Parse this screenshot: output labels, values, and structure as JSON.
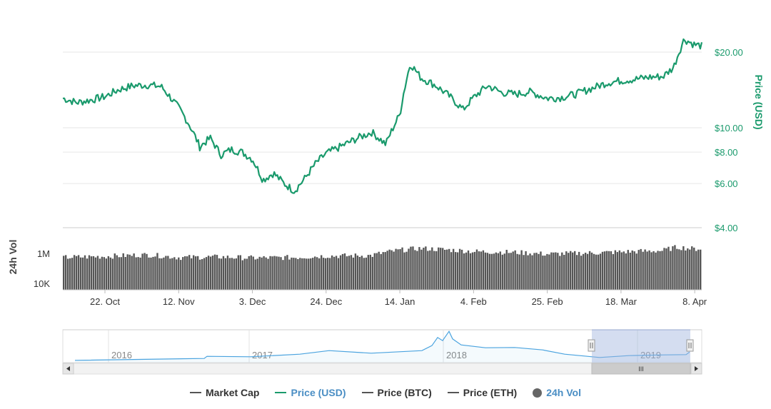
{
  "chart_data": {
    "type": "line",
    "title": "",
    "colors": {
      "price": "#1a9a6c",
      "volume": "#555555",
      "navigator": "#4aa3df"
    },
    "price_axis": {
      "label": "Price (USD)",
      "ticks": [
        "$20.00",
        "$10.00",
        "$8.00",
        "$6.00",
        "$4.00"
      ],
      "tick_values": [
        20,
        10,
        8,
        6,
        4
      ],
      "scale": "log"
    },
    "volume_axis": {
      "label": "24h Vol",
      "ticks": [
        "1M",
        "10K"
      ],
      "tick_values": [
        1000000,
        10000
      ],
      "scale": "log"
    },
    "x_ticks": [
      "22. Oct",
      "12. Nov",
      "3. Dec",
      "24. Dec",
      "14. Jan",
      "4. Feb",
      "25. Feb",
      "18. Mar",
      "8. Apr"
    ],
    "x_tick_dates": [
      "2018-10-22",
      "2018-11-12",
      "2018-12-03",
      "2018-12-24",
      "2019-01-14",
      "2019-02-04",
      "2019-02-25",
      "2019-03-18",
      "2019-04-08"
    ],
    "x_range": [
      "2018-10-10",
      "2019-04-10"
    ],
    "series": [
      {
        "name": "Price (USD)",
        "x": [
          "2018-10-10",
          "2018-10-14",
          "2018-10-18",
          "2018-10-22",
          "2018-10-26",
          "2018-10-30",
          "2018-11-03",
          "2018-11-07",
          "2018-11-12",
          "2018-11-15",
          "2018-11-18",
          "2018-11-21",
          "2018-11-24",
          "2018-11-27",
          "2018-11-30",
          "2018-12-03",
          "2018-12-06",
          "2018-12-09",
          "2018-12-12",
          "2018-12-15",
          "2018-12-18",
          "2018-12-21",
          "2018-12-24",
          "2018-12-28",
          "2019-01-02",
          "2019-01-06",
          "2019-01-10",
          "2019-01-14",
          "2019-01-17",
          "2019-01-20",
          "2019-01-24",
          "2019-01-28",
          "2019-02-01",
          "2019-02-04",
          "2019-02-08",
          "2019-02-12",
          "2019-02-16",
          "2019-02-20",
          "2019-02-25",
          "2019-03-01",
          "2019-03-05",
          "2019-03-10",
          "2019-03-14",
          "2019-03-18",
          "2019-03-22",
          "2019-03-26",
          "2019-03-30",
          "2019-04-02",
          "2019-04-05",
          "2019-04-08",
          "2019-04-10"
        ],
        "values": [
          13.1,
          12.6,
          12.9,
          13.3,
          14.2,
          14.7,
          14.8,
          14.6,
          12.0,
          10.3,
          8.4,
          9.1,
          7.8,
          8.2,
          8.0,
          7.5,
          6.2,
          6.6,
          6.0,
          5.6,
          6.3,
          7.2,
          7.9,
          8.4,
          9.1,
          9.6,
          8.6,
          11.3,
          18.0,
          15.8,
          14.8,
          13.4,
          11.8,
          13.2,
          14.7,
          13.8,
          13.6,
          13.9,
          13.1,
          13.2,
          13.6,
          14.4,
          15.1,
          15.4,
          15.6,
          15.9,
          16.0,
          17.4,
          22.5,
          21.4,
          21.2
        ]
      },
      {
        "name": "24h Vol",
        "x": [
          "2018-10-10",
          "2018-10-22",
          "2018-11-03",
          "2018-11-12",
          "2018-11-24",
          "2018-12-03",
          "2018-12-15",
          "2018-12-24",
          "2019-01-06",
          "2019-01-14",
          "2019-01-20",
          "2019-02-04",
          "2019-02-16",
          "2019-02-25",
          "2019-03-10",
          "2019-03-18",
          "2019-03-30",
          "2019-04-03",
          "2019-04-08",
          "2019-04-10"
        ],
        "values": [
          600000,
          700000,
          900000,
          600000,
          650000,
          550000,
          600000,
          750000,
          800000,
          1800000,
          2400000,
          1500000,
          1300000,
          1000000,
          1200000,
          1400000,
          1700000,
          2900000,
          2200000,
          2400000
        ]
      }
    ],
    "navigator": {
      "labels": [
        "2016",
        "2017",
        "2018",
        "2019"
      ],
      "scrollbar_grip": "III"
    },
    "legend": [
      {
        "label": "Market Cap",
        "symbol": "line",
        "color": "#555555"
      },
      {
        "label": "Price (USD)",
        "symbol": "line",
        "color": "#1a9a6c",
        "active": true
      },
      {
        "label": "Price (BTC)",
        "symbol": "line",
        "color": "#555555"
      },
      {
        "label": "Price (ETH)",
        "symbol": "line",
        "color": "#555555"
      },
      {
        "label": "24h Vol",
        "symbol": "dot",
        "color": "#666666",
        "active": true
      }
    ]
  }
}
